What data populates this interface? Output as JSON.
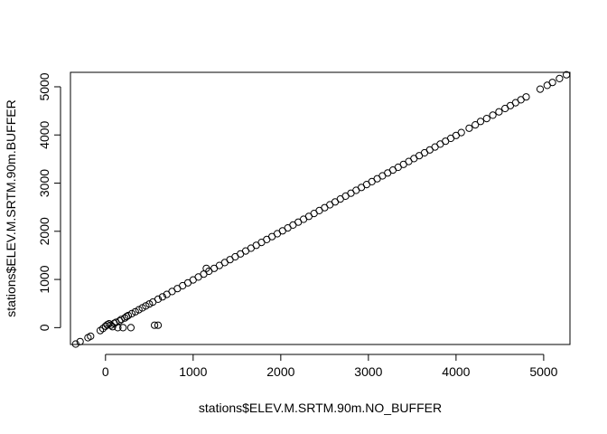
{
  "chart_data": {
    "type": "scatter",
    "title": "",
    "xlabel": "stations$ELEV.M.SRTM.90m.NO_BUFFER",
    "ylabel": "stations$ELEV.M.SRTM.90m.BUFFER",
    "xlim": [
      -400,
      5300
    ],
    "ylim": [
      -350,
      5300
    ],
    "x_ticks": [
      0,
      1000,
      2000,
      3000,
      4000,
      5000
    ],
    "y_ticks": [
      0,
      1000,
      2000,
      3000,
      4000,
      5000
    ],
    "x_tick_labels": [
      "0",
      "1000",
      "2000",
      "3000",
      "4000",
      "5000"
    ],
    "y_tick_labels": [
      "0",
      "1000",
      "2000",
      "3000",
      "4000",
      "5000"
    ],
    "grid": false,
    "legend": "none",
    "marker": "open-circle",
    "point_color": "#000000",
    "points": [
      [
        -340,
        -340
      ],
      [
        -290,
        -290
      ],
      [
        -200,
        -210
      ],
      [
        -170,
        -180
      ],
      [
        -60,
        -60
      ],
      [
        -30,
        -20
      ],
      [
        0,
        30
      ],
      [
        20,
        60
      ],
      [
        40,
        80
      ],
      [
        60,
        50
      ],
      [
        80,
        20
      ],
      [
        100,
        90
      ],
      [
        120,
        110
      ],
      [
        140,
        0
      ],
      [
        160,
        140
      ],
      [
        180,
        170
      ],
      [
        200,
        0
      ],
      [
        220,
        200
      ],
      [
        240,
        230
      ],
      [
        260,
        250
      ],
      [
        290,
        0
      ],
      [
        300,
        290
      ],
      [
        340,
        330
      ],
      [
        380,
        370
      ],
      [
        420,
        410
      ],
      [
        460,
        450
      ],
      [
        500,
        490
      ],
      [
        540,
        530
      ],
      [
        560,
        50
      ],
      [
        600,
        50
      ],
      [
        600,
        590
      ],
      [
        650,
        640
      ],
      [
        700,
        690
      ],
      [
        760,
        750
      ],
      [
        820,
        810
      ],
      [
        880,
        870
      ],
      [
        940,
        930
      ],
      [
        1000,
        990
      ],
      [
        1060,
        1050
      ],
      [
        1120,
        1110
      ],
      [
        1150,
        1230
      ],
      [
        1180,
        1170
      ],
      [
        1240,
        1230
      ],
      [
        1300,
        1290
      ],
      [
        1360,
        1350
      ],
      [
        1420,
        1410
      ],
      [
        1480,
        1470
      ],
      [
        1540,
        1530
      ],
      [
        1600,
        1590
      ],
      [
        1660,
        1650
      ],
      [
        1720,
        1710
      ],
      [
        1780,
        1770
      ],
      [
        1840,
        1830
      ],
      [
        1900,
        1890
      ],
      [
        1960,
        1950
      ],
      [
        2020,
        2010
      ],
      [
        2080,
        2070
      ],
      [
        2140,
        2130
      ],
      [
        2200,
        2190
      ],
      [
        2260,
        2250
      ],
      [
        2320,
        2310
      ],
      [
        2380,
        2370
      ],
      [
        2440,
        2430
      ],
      [
        2500,
        2490
      ],
      [
        2560,
        2550
      ],
      [
        2620,
        2610
      ],
      [
        2680,
        2670
      ],
      [
        2740,
        2730
      ],
      [
        2800,
        2790
      ],
      [
        2860,
        2850
      ],
      [
        2920,
        2910
      ],
      [
        2980,
        2970
      ],
      [
        3040,
        3030
      ],
      [
        3100,
        3090
      ],
      [
        3160,
        3150
      ],
      [
        3220,
        3210
      ],
      [
        3280,
        3270
      ],
      [
        3340,
        3330
      ],
      [
        3400,
        3390
      ],
      [
        3460,
        3450
      ],
      [
        3520,
        3510
      ],
      [
        3580,
        3570
      ],
      [
        3640,
        3630
      ],
      [
        3700,
        3690
      ],
      [
        3760,
        3750
      ],
      [
        3820,
        3810
      ],
      [
        3880,
        3870
      ],
      [
        3940,
        3930
      ],
      [
        4000,
        3990
      ],
      [
        4060,
        4050
      ],
      [
        4150,
        4140
      ],
      [
        4220,
        4210
      ],
      [
        4280,
        4280
      ],
      [
        4350,
        4340
      ],
      [
        4420,
        4410
      ],
      [
        4490,
        4480
      ],
      [
        4560,
        4550
      ],
      [
        4620,
        4610
      ],
      [
        4680,
        4670
      ],
      [
        4740,
        4730
      ],
      [
        4800,
        4790
      ],
      [
        4960,
        4950
      ],
      [
        5040,
        5030
      ],
      [
        5100,
        5090
      ],
      [
        5180,
        5170
      ],
      [
        5260,
        5250
      ]
    ]
  }
}
